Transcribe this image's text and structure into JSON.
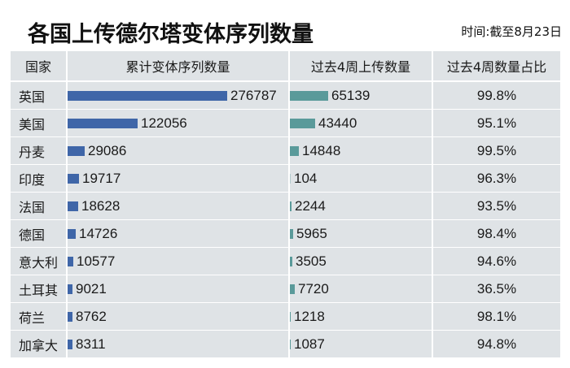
{
  "title": "各国上传德尔塔变体序列数量",
  "date_note": "时间:截至8月23日",
  "table": {
    "headers": [
      "国家",
      "累计变体序列数量",
      "过去4周上传数量",
      "过去4周数量占比"
    ],
    "rows": [
      {
        "country": "英国",
        "cumulative": "276787",
        "recent": "65139",
        "share": "99.8%"
      },
      {
        "country": "美国",
        "cumulative": "122056",
        "recent": "43440",
        "share": "95.1%"
      },
      {
        "country": "丹麦",
        "cumulative": "29086",
        "recent": "14848",
        "share": "99.5%"
      },
      {
        "country": "印度",
        "cumulative": "19717",
        "recent": "104",
        "share": "96.3%"
      },
      {
        "country": "法国",
        "cumulative": "18628",
        "recent": "2244",
        "share": "93.5%"
      },
      {
        "country": "德国",
        "cumulative": "14726",
        "recent": "5965",
        "share": "98.4%"
      },
      {
        "country": "意大利",
        "cumulative": "10577",
        "recent": "3505",
        "share": "94.6%"
      },
      {
        "country": "土耳其",
        "cumulative": "9021",
        "recent": "7720",
        "share": "36.5%"
      },
      {
        "country": "荷兰",
        "cumulative": "8762",
        "recent": "1218",
        "share": "98.1%"
      },
      {
        "country": "加拿大",
        "cumulative": "8311",
        "recent": "1087",
        "share": "94.8%"
      }
    ]
  },
  "colors": {
    "cumulative_bar": "#3f66a8",
    "recent_bar": "#5a9a9a",
    "cell_bg": "#dfe3e6"
  },
  "chart_data": {
    "type": "bar",
    "title": "各国上传德尔塔变体序列数量",
    "subtitle": "时间:截至8月23日",
    "categories": [
      "英国",
      "美国",
      "丹麦",
      "印度",
      "法国",
      "德国",
      "意大利",
      "土耳其",
      "荷兰",
      "加拿大"
    ],
    "series": [
      {
        "name": "累计变体序列数量",
        "values": [
          276787,
          122056,
          29086,
          19717,
          18628,
          14726,
          10577,
          9021,
          8762,
          8311
        ]
      },
      {
        "name": "过去4周上传数量",
        "values": [
          65139,
          43440,
          14848,
          104,
          2244,
          5965,
          3505,
          7720,
          1218,
          1087
        ]
      },
      {
        "name": "过去4周数量占比",
        "values": [
          99.8,
          95.1,
          99.5,
          96.3,
          93.5,
          98.4,
          94.6,
          36.5,
          98.1,
          94.8
        ],
        "unit": "%"
      }
    ],
    "orientation": "horizontal",
    "xlabel": "",
    "ylabel": "国家",
    "grid": false,
    "legend": "none (table headers)"
  }
}
